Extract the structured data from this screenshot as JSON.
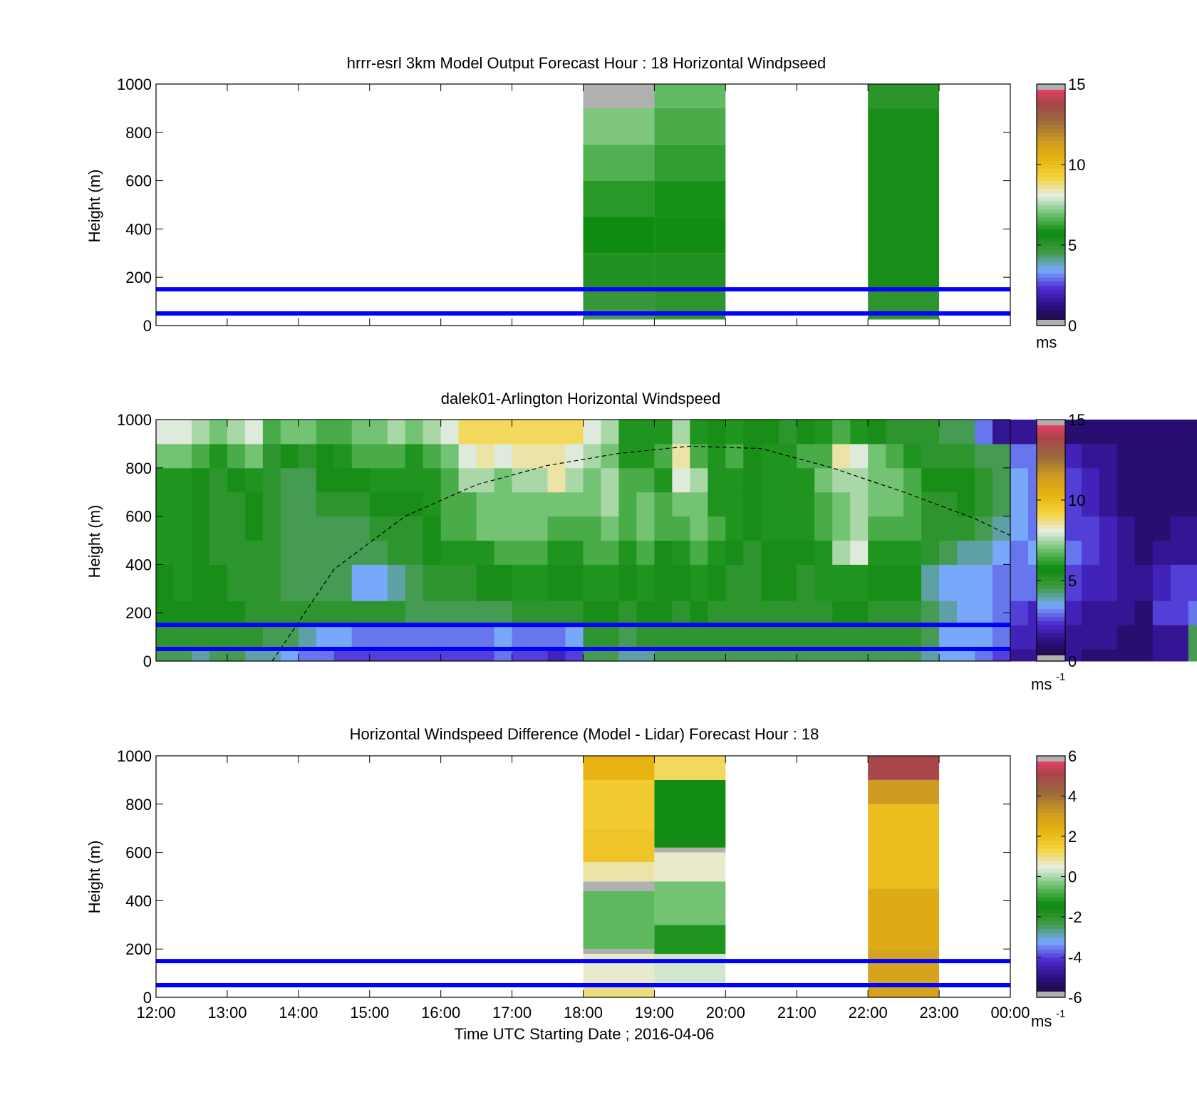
{
  "figure": {
    "xlabel": "Time UTC  Starting Date ; 2016-04-06"
  },
  "chart_data": [
    {
      "type": "heatmap",
      "title": "hrrr-esrl 3km Model Output   Forecast Hour : 18 Horizontal Windpseed",
      "ylabel": "Height (m)",
      "ylim": [
        0,
        1000
      ],
      "yticks": [
        0,
        200,
        400,
        600,
        800,
        1000
      ],
      "xlim": [
        "12:00",
        "00:00"
      ],
      "xticks": [
        "12:00",
        "13:00",
        "14:00",
        "15:00",
        "16:00",
        "17:00",
        "18:00",
        "19:00",
        "20:00",
        "21:00",
        "22:00",
        "23:00",
        "00:00"
      ],
      "show_xtick_labels": false,
      "colorbar": {
        "min": 0,
        "max": 15,
        "ticks": [
          0,
          5,
          10,
          15
        ],
        "unit": "ms"
      },
      "reference_heights_m": [
        50,
        150
      ],
      "columns": [
        {
          "start": "18:00",
          "end": "19:00",
          "bins": [
            {
              "z0": 25,
              "z1": 60,
              "v": 4.5
            },
            {
              "z0": 60,
              "z1": 150,
              "v": 4.8
            },
            {
              "z0": 150,
              "z1": 300,
              "v": 5.3
            },
            {
              "z0": 300,
              "z1": 450,
              "v": 5.7
            },
            {
              "z0": 450,
              "z1": 600,
              "v": 6.1
            },
            {
              "z0": 600,
              "z1": 750,
              "v": 6.6
            },
            {
              "z0": 750,
              "z1": 900,
              "v": 7.1
            },
            {
              "z0": 900,
              "z1": 1000,
              "nan": true
            }
          ]
        },
        {
          "start": "19:00",
          "end": "20:00",
          "bins": [
            {
              "z0": 25,
              "z1": 150,
              "v": 5.0
            },
            {
              "z0": 150,
              "z1": 300,
              "v": 5.3
            },
            {
              "z0": 300,
              "z1": 450,
              "v": 5.6
            },
            {
              "z0": 450,
              "z1": 600,
              "v": 5.9
            },
            {
              "z0": 600,
              "z1": 750,
              "v": 6.2
            },
            {
              "z0": 750,
              "z1": 900,
              "v": 6.5
            },
            {
              "z0": 900,
              "z1": 1000,
              "v": 6.8
            }
          ]
        },
        {
          "start": "22:00",
          "end": "23:00",
          "bins": [
            {
              "z0": 25,
              "z1": 150,
              "v": 5.0
            },
            {
              "z0": 150,
              "z1": 900,
              "v": 5.5
            },
            {
              "z0": 900,
              "z1": 1000,
              "v": 5.1
            }
          ]
        }
      ]
    },
    {
      "type": "heatmap",
      "title": "dalek01-Arlington  Horizontal Windspeed",
      "ylabel": "Height (m)",
      "ylim": [
        0,
        1000
      ],
      "yticks": [
        0,
        200,
        400,
        600,
        800,
        1000
      ],
      "xlim": [
        "12:00",
        "00:00"
      ],
      "xticks": [
        "12:00",
        "13:00",
        "14:00",
        "15:00",
        "16:00",
        "17:00",
        "18:00",
        "19:00",
        "20:00",
        "21:00",
        "22:00",
        "23:00",
        "00:00"
      ],
      "show_xtick_labels": false,
      "colorbar": {
        "min": 0,
        "max": 15,
        "ticks": [
          0,
          5,
          10,
          15
        ],
        "unit": "ms",
        "unit_exponent": "-1"
      },
      "reference_heights_m": [
        50,
        150
      ],
      "time_step_min": 15,
      "height_bins_m": [
        0,
        50,
        150,
        250,
        400,
        500,
        600,
        700,
        800,
        900,
        1000
      ],
      "values_bottom_to_top": [
        [
          4.5,
          5.0,
          5.5,
          5.5,
          6.0,
          6.0,
          6.0,
          6.0,
          7.0,
          8.0
        ],
        [
          4.5,
          5.0,
          5.5,
          6.0,
          6.0,
          6.0,
          6.0,
          6.0,
          7.0,
          8.0
        ],
        [
          4.0,
          5.0,
          5.5,
          5.5,
          5.5,
          5.5,
          5.5,
          5.5,
          6.5,
          7.5
        ],
        [
          4.5,
          5.0,
          5.5,
          5.5,
          5.0,
          5.0,
          5.0,
          5.0,
          6.0,
          7.0
        ],
        [
          4.5,
          5.0,
          5.5,
          5.0,
          5.0,
          5.0,
          5.0,
          5.5,
          6.5,
          7.5
        ],
        [
          4.0,
          5.0,
          5.0,
          5.0,
          5.0,
          5.5,
          5.5,
          6.0,
          7.0,
          8.0
        ],
        [
          4.0,
          4.5,
          5.0,
          5.0,
          5.0,
          5.0,
          5.0,
          5.0,
          5.0,
          6.5
        ],
        [
          3.5,
          4.5,
          5.0,
          4.5,
          4.5,
          4.5,
          4.5,
          4.5,
          5.5,
          7.0
        ],
        [
          3.0,
          4.0,
          5.0,
          4.5,
          4.5,
          4.5,
          4.5,
          4.5,
          5.0,
          7.0
        ],
        [
          3.0,
          3.5,
          5.0,
          4.5,
          4.5,
          4.5,
          5.0,
          5.5,
          5.5,
          6.5
        ],
        [
          2.5,
          3.5,
          5.0,
          4.5,
          4.5,
          4.5,
          5.0,
          5.5,
          6.0,
          6.5
        ],
        [
          2.5,
          3.0,
          5.0,
          3.5,
          4.5,
          4.5,
          5.0,
          5.5,
          6.5,
          7.0
        ],
        [
          2.5,
          3.0,
          5.0,
          3.5,
          4.5,
          5.0,
          5.5,
          6.0,
          6.5,
          7.0
        ],
        [
          2.5,
          3.0,
          5.0,
          4.0,
          5.0,
          5.0,
          5.5,
          6.0,
          6.5,
          7.5
        ],
        [
          2.5,
          3.0,
          4.5,
          4.5,
          5.0,
          5.0,
          5.5,
          6.0,
          6.0,
          7.0
        ],
        [
          2.5,
          3.0,
          4.5,
          5.0,
          5.5,
          5.5,
          6.0,
          6.0,
          6.5,
          7.5
        ],
        [
          2.5,
          3.0,
          4.5,
          5.0,
          6.0,
          6.5,
          6.5,
          6.5,
          7.0,
          8.0
        ],
        [
          2.5,
          3.0,
          4.5,
          5.0,
          6.0,
          6.5,
          6.5,
          7.5,
          8.0,
          9.0
        ],
        [
          2.5,
          3.0,
          4.5,
          5.5,
          6.0,
          7.0,
          7.0,
          7.5,
          8.5,
          9.0
        ],
        [
          3.0,
          3.5,
          4.5,
          5.5,
          6.5,
          7.0,
          7.0,
          7.0,
          8.0,
          9.0
        ],
        [
          2.5,
          3.0,
          5.0,
          6.0,
          6.5,
          7.0,
          7.0,
          7.5,
          8.5,
          9.0
        ],
        [
          2.5,
          3.0,
          5.0,
          6.0,
          6.5,
          7.0,
          7.0,
          7.5,
          8.5,
          9.0
        ],
        [
          2.0,
          3.0,
          5.0,
          5.5,
          6.0,
          6.5,
          7.0,
          8.5,
          8.5,
          9.0
        ],
        [
          2.5,
          3.5,
          5.0,
          5.5,
          6.0,
          6.5,
          7.0,
          7.5,
          8.0,
          9.0
        ],
        [
          4.5,
          5.0,
          5.5,
          6.0,
          6.5,
          6.5,
          7.0,
          7.0,
          7.5,
          8.0
        ],
        [
          4.5,
          5.0,
          5.5,
          6.0,
          6.5,
          7.0,
          7.5,
          7.5,
          7.0,
          7.5
        ],
        [
          4.0,
          4.5,
          5.0,
          5.5,
          6.0,
          6.5,
          6.5,
          6.5,
          6.0,
          6.0
        ],
        [
          4.0,
          5.0,
          5.5,
          6.0,
          6.5,
          7.0,
          7.0,
          6.5,
          6.0,
          6.0
        ],
        [
          4.5,
          5.0,
          5.5,
          5.5,
          5.5,
          6.5,
          6.5,
          6.0,
          6.5,
          6.0
        ],
        [
          4.5,
          5.0,
          5.0,
          5.5,
          6.0,
          6.5,
          7.0,
          8.0,
          8.5,
          7.5
        ],
        [
          4.5,
          5.0,
          5.5,
          6.0,
          6.5,
          7.0,
          7.0,
          7.5,
          6.5,
          6.0
        ],
        [
          4.5,
          5.0,
          5.0,
          5.5,
          6.0,
          6.5,
          6.0,
          6.0,
          6.0,
          5.5
        ],
        [
          4.5,
          5.0,
          5.0,
          5.0,
          5.5,
          6.0,
          6.0,
          6.0,
          6.5,
          6.0
        ],
        [
          4.5,
          5.0,
          5.0,
          5.0,
          5.0,
          5.5,
          5.5,
          5.5,
          5.5,
          5.5
        ],
        [
          4.5,
          5.0,
          5.0,
          5.5,
          5.5,
          6.0,
          6.0,
          6.0,
          6.0,
          5.5
        ],
        [
          4.5,
          5.0,
          5.0,
          5.5,
          5.5,
          6.0,
          6.0,
          6.0,
          6.0,
          5.0
        ],
        [
          4.5,
          5.0,
          5.0,
          5.0,
          5.5,
          6.0,
          6.0,
          6.0,
          6.5,
          5.5
        ],
        [
          4.5,
          5.0,
          5.0,
          6.0,
          6.0,
          6.5,
          6.5,
          7.0,
          6.5,
          6.0
        ],
        [
          4.5,
          5.0,
          5.5,
          6.0,
          7.5,
          7.0,
          7.0,
          7.5,
          8.5,
          6.5
        ],
        [
          4.5,
          5.0,
          5.5,
          6.0,
          8.0,
          7.5,
          7.5,
          7.5,
          8.0,
          6.0
        ],
        [
          4.5,
          5.0,
          5.0,
          5.5,
          6.0,
          6.5,
          7.0,
          7.0,
          7.0,
          5.5
        ],
        [
          4.5,
          5.0,
          5.0,
          5.5,
          6.0,
          6.5,
          7.0,
          7.0,
          6.5,
          5.0
        ],
        [
          4.5,
          5.0,
          5.0,
          5.5,
          6.0,
          6.5,
          6.5,
          6.5,
          6.0,
          5.0
        ],
        [
          4.0,
          4.5,
          4.5,
          4.0,
          5.0,
          5.0,
          5.0,
          5.5,
          5.0,
          5.0
        ],
        [
          3.5,
          3.5,
          4.0,
          3.5,
          4.5,
          5.0,
          5.0,
          5.5,
          5.0,
          4.5
        ],
        [
          3.5,
          3.5,
          3.5,
          3.5,
          4.0,
          5.0,
          5.5,
          5.5,
          5.0,
          4.5
        ],
        [
          3.0,
          3.5,
          3.5,
          3.5,
          4.0,
          4.5,
          5.0,
          5.0,
          4.5,
          3.0
        ],
        [
          2.5,
          3.0,
          3.0,
          3.0,
          3.5,
          4.0,
          4.5,
          4.5,
          4.5,
          1.5
        ],
        [
          1.5,
          2.0,
          2.5,
          3.0,
          3.0,
          3.5,
          3.5,
          3.5,
          3.0,
          1.5
        ],
        [
          1.5,
          2.0,
          2.0,
          3.0,
          3.5,
          3.0,
          3.0,
          3.0,
          3.0,
          1.5
        ],
        [
          1.5,
          2.0,
          2.0,
          2.5,
          3.0,
          3.0,
          3.0,
          2.5,
          2.5,
          1.0
        ],
        [
          1.5,
          1.5,
          2.0,
          2.5,
          3.0,
          2.5,
          2.5,
          2.5,
          2.0,
          1.0
        ],
        [
          1.0,
          1.5,
          1.5,
          2.0,
          2.5,
          2.5,
          2.0,
          2.0,
          1.5,
          1.0
        ],
        [
          1.0,
          1.5,
          1.5,
          2.0,
          2.0,
          2.0,
          1.5,
          1.5,
          1.5,
          1.0
        ],
        [
          1.0,
          1.0,
          1.5,
          1.5,
          1.5,
          1.5,
          1.0,
          1.0,
          1.0,
          1.0
        ],
        [
          1.0,
          1.0,
          1.0,
          1.5,
          1.0,
          1.0,
          1.0,
          1.0,
          1.0,
          1.0
        ],
        [
          1.5,
          1.5,
          2.5,
          2.0,
          1.5,
          1.0,
          1.0,
          1.0,
          1.0,
          1.0
        ],
        [
          1.5,
          1.5,
          2.5,
          2.5,
          1.5,
          1.5,
          1.0,
          1.0,
          1.0,
          1.0
        ],
        [
          4.5,
          4.5,
          3.0,
          2.5,
          1.5,
          1.5,
          1.0,
          1.0,
          1.0,
          1.0
        ]
      ],
      "overlay_curve": {
        "style": "dashed",
        "points": [
          [
            "13:38",
            0
          ],
          [
            "14:30",
            380
          ],
          [
            "15:30",
            600
          ],
          [
            "16:30",
            730
          ],
          [
            "17:30",
            810
          ],
          [
            "18:30",
            860
          ],
          [
            "19:30",
            890
          ],
          [
            "20:30",
            880
          ],
          [
            "21:30",
            800
          ],
          [
            "22:30",
            700
          ],
          [
            "23:30",
            590
          ],
          [
            "00:00",
            520
          ]
        ]
      }
    },
    {
      "type": "heatmap",
      "title": "Horizontal Windspeed Difference (Model - Lidar) Forecast Hour : 18",
      "ylabel": "Height (m)",
      "ylim": [
        0,
        1000
      ],
      "yticks": [
        0,
        200,
        400,
        600,
        800,
        1000
      ],
      "xlim": [
        "12:00",
        "00:00"
      ],
      "xticks": [
        "12:00",
        "13:00",
        "14:00",
        "15:00",
        "16:00",
        "17:00",
        "18:00",
        "19:00",
        "20:00",
        "21:00",
        "22:00",
        "23:00",
        "00:00"
      ],
      "show_xtick_labels": true,
      "colorbar": {
        "min": -6,
        "max": 6,
        "ticks": [
          -6,
          -4,
          -2,
          0,
          2,
          4,
          6
        ],
        "unit": "ms",
        "unit_exponent": "-1"
      },
      "reference_heights_m": [
        50,
        150
      ],
      "columns": [
        {
          "start": "18:00",
          "end": "19:00",
          "bins": [
            {
              "z0": 0,
              "z1": 60,
              "v": 1.0
            },
            {
              "z0": 60,
              "z1": 180,
              "v": 0.6
            },
            {
              "z0": 180,
              "z1": 200,
              "nan": true
            },
            {
              "z0": 200,
              "z1": 440,
              "v": -0.6
            },
            {
              "z0": 440,
              "z1": 480,
              "nan": true
            },
            {
              "z0": 480,
              "z1": 560,
              "v": 0.8
            },
            {
              "z0": 560,
              "z1": 700,
              "v": 1.8
            },
            {
              "z0": 700,
              "z1": 900,
              "v": 1.6
            },
            {
              "z0": 900,
              "z1": 1000,
              "v": 2.3
            }
          ]
        },
        {
          "start": "19:00",
          "end": "20:00",
          "bins": [
            {
              "z0": 60,
              "z1": 180,
              "v": 0.3
            },
            {
              "z0": 180,
              "z1": 300,
              "v": -1.2
            },
            {
              "z0": 300,
              "z1": 480,
              "v": -0.4
            },
            {
              "z0": 480,
              "z1": 600,
              "v": 0.6
            },
            {
              "z0": 600,
              "z1": 620,
              "nan": true
            },
            {
              "z0": 620,
              "z1": 900,
              "v": -1.5
            },
            {
              "z0": 900,
              "z1": 1000,
              "v": 1.2
            }
          ]
        },
        {
          "start": "22:00",
          "end": "23:00",
          "bins": [
            {
              "z0": 0,
              "z1": 200,
              "v": 2.9
            },
            {
              "z0": 200,
              "z1": 450,
              "v": 2.6
            },
            {
              "z0": 450,
              "z1": 800,
              "v": 2.0
            },
            {
              "z0": 800,
              "z1": 900,
              "v": 3.2
            },
            {
              "z0": 900,
              "z1": 1000,
              "v": 5.0
            }
          ]
        }
      ]
    }
  ],
  "colors": {
    "reference_line": "#0000ff",
    "nan_fill": "#b0b0b0",
    "colormap_anchors": [
      "#151030",
      "#2a0e7a",
      "#4b2ad0",
      "#79a8ff",
      "#3f9a3f",
      "#0c8a0c",
      "#6cc06c",
      "#e6eee4",
      "#f5d23a",
      "#e7b311",
      "#cc9a22",
      "#9a6a3c",
      "#a9444c",
      "#ff3f6a"
    ]
  }
}
